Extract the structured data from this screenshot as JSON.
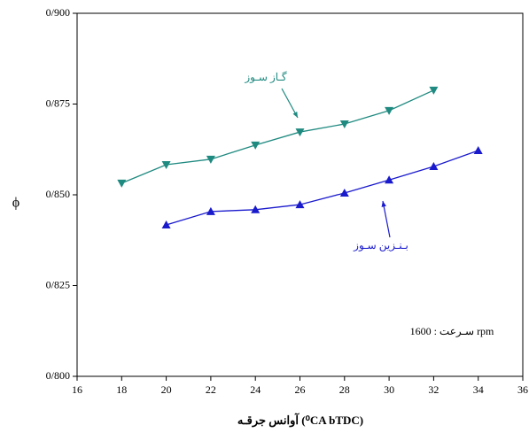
{
  "chart_data": {
    "type": "line",
    "x_label": "آوانس جرقـه (⁰CA bTDC)",
    "y_label": "ϕ",
    "annotation": "سـرعت : 1600 rpm",
    "xlim": [
      16,
      36
    ],
    "xticks": [
      16,
      18,
      20,
      22,
      24,
      26,
      28,
      30,
      32,
      34,
      36
    ],
    "ylim": [
      0.8,
      0.9
    ],
    "yticks": [
      {
        "value": 0.8,
        "label": "0/800"
      },
      {
        "value": 0.825,
        "label": "0/825"
      },
      {
        "value": 0.85,
        "label": "0/850"
      },
      {
        "value": 0.875,
        "label": "0/875"
      },
      {
        "value": 0.9,
        "label": "0/900"
      }
    ],
    "series": [
      {
        "name": "گـاز سـوز",
        "color": "#1f8a80",
        "marker": "down",
        "x": [
          18,
          20,
          22,
          24,
          26,
          28,
          30,
          32
        ],
        "values": [
          0.8532,
          0.8583,
          0.8598,
          0.8637,
          0.8673,
          0.8695,
          0.8732,
          0.8788
        ]
      },
      {
        "name": "بـنـزين سـوز",
        "color": "#1a1acd",
        "marker": "up",
        "x": [
          20,
          22,
          24,
          26,
          28,
          30,
          32,
          34
        ],
        "values": [
          0.8417,
          0.8454,
          0.8459,
          0.8473,
          0.8505,
          0.8541,
          0.8578,
          0.8622
        ]
      }
    ]
  }
}
